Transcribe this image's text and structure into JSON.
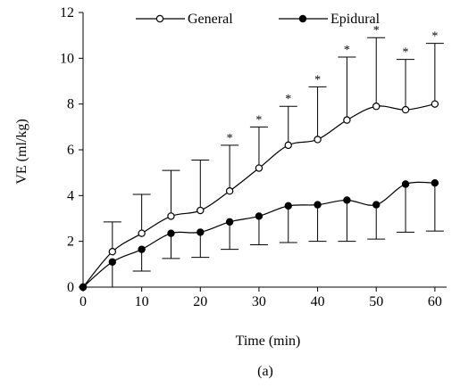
{
  "chart_data": {
    "type": "line",
    "title": "",
    "xlabel": "Time (min)",
    "ylabel": "VE (ml/kg)",
    "caption": "(a)",
    "xlim": [
      0,
      62
    ],
    "ylim": [
      0,
      12
    ],
    "xticks": [
      0,
      10,
      20,
      30,
      40,
      50,
      60
    ],
    "yticks": [
      0,
      2,
      4,
      6,
      8,
      10,
      12
    ],
    "grid": false,
    "legend_position": "top",
    "significance_marker": "*",
    "series": [
      {
        "name": "General",
        "marker": "open-circle",
        "error_direction": "up",
        "x": [
          0,
          5,
          10,
          15,
          20,
          25,
          30,
          35,
          40,
          45,
          50,
          55,
          60
        ],
        "values": [
          0,
          1.55,
          2.35,
          3.1,
          3.35,
          4.2,
          5.2,
          6.2,
          6.45,
          7.3,
          7.9,
          7.75,
          8.0
        ],
        "error": [
          0,
          1.3,
          1.7,
          2.0,
          2.2,
          2.0,
          1.8,
          1.7,
          2.3,
          2.75,
          3.0,
          2.2,
          2.65
        ],
        "significant": [
          false,
          false,
          false,
          false,
          false,
          true,
          true,
          true,
          true,
          true,
          true,
          true,
          true
        ]
      },
      {
        "name": "Epidural",
        "marker": "filled-circle",
        "error_direction": "down",
        "x": [
          0,
          5,
          10,
          15,
          20,
          25,
          30,
          35,
          40,
          45,
          50,
          55,
          60
        ],
        "values": [
          0,
          1.1,
          1.65,
          2.35,
          2.4,
          2.85,
          3.1,
          3.55,
          3.6,
          3.8,
          3.6,
          4.5,
          4.55
        ],
        "error": [
          0,
          1.1,
          0.95,
          1.1,
          1.1,
          1.2,
          1.25,
          1.6,
          1.6,
          1.8,
          1.5,
          2.1,
          2.1
        ]
      }
    ]
  }
}
